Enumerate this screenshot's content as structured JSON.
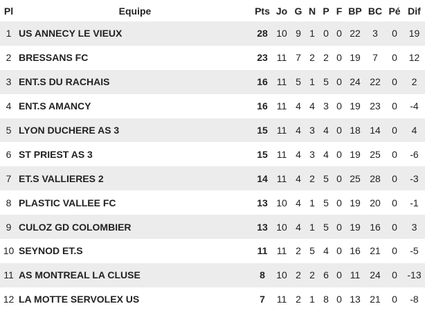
{
  "headers": [
    "Pl",
    "Equipe",
    "Pts",
    "Jo",
    "G",
    "N",
    "P",
    "F",
    "BP",
    "BC",
    "Pé",
    "Dif"
  ],
  "rows": [
    [
      "1",
      "US ANNECY LE VIEUX",
      "28",
      "10",
      "9",
      "1",
      "0",
      "0",
      "22",
      "3",
      "0",
      "19"
    ],
    [
      "2",
      "BRESSANS FC",
      "23",
      "11",
      "7",
      "2",
      "2",
      "0",
      "19",
      "7",
      "0",
      "12"
    ],
    [
      "3",
      "ENT.S DU RACHAIS",
      "16",
      "11",
      "5",
      "1",
      "5",
      "0",
      "24",
      "22",
      "0",
      "2"
    ],
    [
      "4",
      "ENT.S AMANCY",
      "16",
      "11",
      "4",
      "4",
      "3",
      "0",
      "19",
      "23",
      "0",
      "-4"
    ],
    [
      "5",
      "LYON DUCHERE AS 3",
      "15",
      "11",
      "4",
      "3",
      "4",
      "0",
      "18",
      "14",
      "0",
      "4"
    ],
    [
      "6",
      "ST PRIEST AS 3",
      "15",
      "11",
      "4",
      "3",
      "4",
      "0",
      "19",
      "25",
      "0",
      "-6"
    ],
    [
      "7",
      "ET.S VALLIERES 2",
      "14",
      "11",
      "4",
      "2",
      "5",
      "0",
      "25",
      "28",
      "0",
      "-3"
    ],
    [
      "8",
      "PLASTIC VALLEE FC",
      "13",
      "10",
      "4",
      "1",
      "5",
      "0",
      "19",
      "20",
      "0",
      "-1"
    ],
    [
      "9",
      "CULOZ GD COLOMBIER",
      "13",
      "10",
      "4",
      "1",
      "5",
      "0",
      "19",
      "16",
      "0",
      "3"
    ],
    [
      "10",
      "SEYNOD ET.S",
      "11",
      "11",
      "2",
      "5",
      "4",
      "0",
      "16",
      "21",
      "0",
      "-5"
    ],
    [
      "11",
      "AS MONTREAL LA CLUSE",
      "8",
      "10",
      "2",
      "2",
      "6",
      "0",
      "11",
      "24",
      "0",
      "-13"
    ],
    [
      "12",
      "LA MOTTE SERVOLEX US",
      "7",
      "11",
      "2",
      "1",
      "8",
      "0",
      "13",
      "21",
      "0",
      "-8"
    ]
  ]
}
